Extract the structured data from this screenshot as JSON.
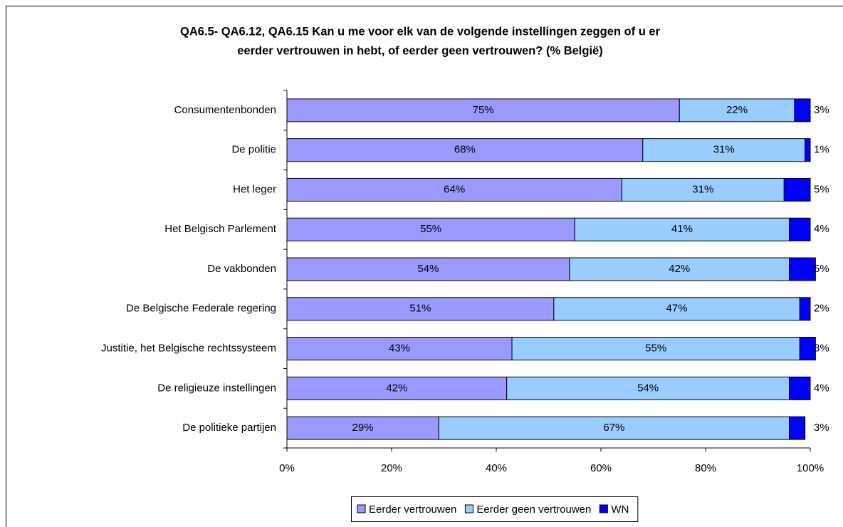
{
  "chart_data": {
    "type": "bar",
    "orientation": "horizontal",
    "stacked": true,
    "title": [
      "QA6.5- QA6.12, QA6.15 Kan u me voor elk van de volgende instellingen zeggen of u er",
      "eerder vertrouwen in hebt, of eerder geen vertrouwen? (% België)"
    ],
    "categories": [
      "Consumentenbonden",
      "De politie",
      "Het leger",
      "Het Belgisch Parlement",
      "De vakbonden",
      "De Belgische Federale regering",
      "Justitie, het Belgische rechtssysteem",
      "De religieuze instellingen",
      "De politieke partijen"
    ],
    "series": [
      {
        "name": "Eerder vertrouwen",
        "color": "#9999ff",
        "values": [
          75,
          68,
          64,
          55,
          54,
          51,
          43,
          42,
          29
        ],
        "value_labels": [
          "75%",
          "68%",
          "64%",
          "55%",
          "54%",
          "51%",
          "43%",
          "42%",
          "29%"
        ]
      },
      {
        "name": "Eerder geen vertrouwen",
        "color": "#99ccff",
        "values": [
          22,
          31,
          31,
          41,
          42,
          47,
          55,
          54,
          67
        ],
        "value_labels": [
          "22%",
          "31%",
          "31%",
          "41%",
          "42%",
          "47%",
          "55%",
          "54%",
          "67%"
        ]
      },
      {
        "name": "WN",
        "color": "#0000ff",
        "values": [
          3,
          1,
          5,
          4,
          5,
          2,
          3,
          4,
          3
        ],
        "value_labels": [
          "3%",
          "1%",
          "5%",
          "4%",
          "5%",
          "2%",
          "3%",
          "4%",
          "3%"
        ]
      }
    ],
    "xlim": [
      0,
      100
    ],
    "xticks": [
      {
        "value": 0,
        "label": "0%"
      },
      {
        "value": 20,
        "label": "20%"
      },
      {
        "value": 40,
        "label": "40%"
      },
      {
        "value": 60,
        "label": "60%"
      },
      {
        "value": 80,
        "label": "80%"
      },
      {
        "value": 100,
        "label": "100%"
      }
    ],
    "legend": "bottom"
  }
}
